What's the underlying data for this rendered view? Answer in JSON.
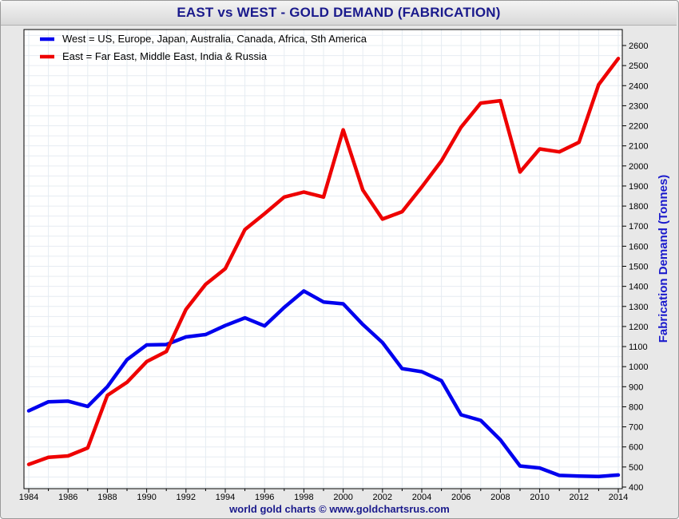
{
  "header": {
    "title": "EAST vs WEST - GOLD DEMAND (FABRICATION)"
  },
  "footer": {
    "credit": "world gold charts © www.goldchartsrus.com"
  },
  "chart_data": {
    "type": "line",
    "title": "EAST vs WEST - GOLD DEMAND (FABRICATION)",
    "xlabel": "",
    "ylabel": "Fabrication Demand (Tonnes)",
    "xlim": [
      1984,
      2014
    ],
    "ylim": [
      400,
      2650
    ],
    "yticks": [
      400,
      500,
      600,
      700,
      800,
      900,
      1000,
      1100,
      1200,
      1300,
      1400,
      1500,
      1600,
      1700,
      1800,
      1900,
      2000,
      2100,
      2200,
      2300,
      2400,
      2500,
      2600
    ],
    "xticks": [
      1984,
      1986,
      1988,
      1990,
      1992,
      1994,
      1996,
      1998,
      2000,
      2002,
      2004,
      2006,
      2008,
      2010,
      2012,
      2014
    ],
    "grid": true,
    "legend_position": "top-left",
    "x": [
      1984,
      1985,
      1986,
      1987,
      1988,
      1989,
      1990,
      1991,
      1992,
      1993,
      1994,
      1995,
      1996,
      1997,
      1998,
      1999,
      2000,
      2001,
      2002,
      2003,
      2004,
      2005,
      2006,
      2007,
      2008,
      2009,
      2010,
      2011,
      2012,
      2013,
      2014
    ],
    "series": [
      {
        "name": "West = US, Europe, Japan, Australia, Canada, Africa, Sth America",
        "color": "#0000ee",
        "values": [
          780,
          825,
          828,
          802,
          900,
          1035,
          1108,
          1110,
          1148,
          1160,
          1205,
          1243,
          1203,
          1295,
          1377,
          1322,
          1313,
          1210,
          1120,
          990,
          975,
          930,
          760,
          732,
          635,
          505,
          495,
          458,
          455,
          453,
          460
        ]
      },
      {
        "name": "East = Far East, Middle East, India & Russia",
        "color": "#ee0000",
        "values": [
          513,
          548,
          555,
          595,
          857,
          922,
          1025,
          1075,
          1285,
          1410,
          1488,
          1683,
          1762,
          1845,
          1870,
          1845,
          2180,
          1880,
          1735,
          1772,
          1895,
          2025,
          2193,
          2313,
          2325,
          1970,
          2085,
          2070,
          2118,
          2405,
          2535
        ]
      }
    ]
  }
}
